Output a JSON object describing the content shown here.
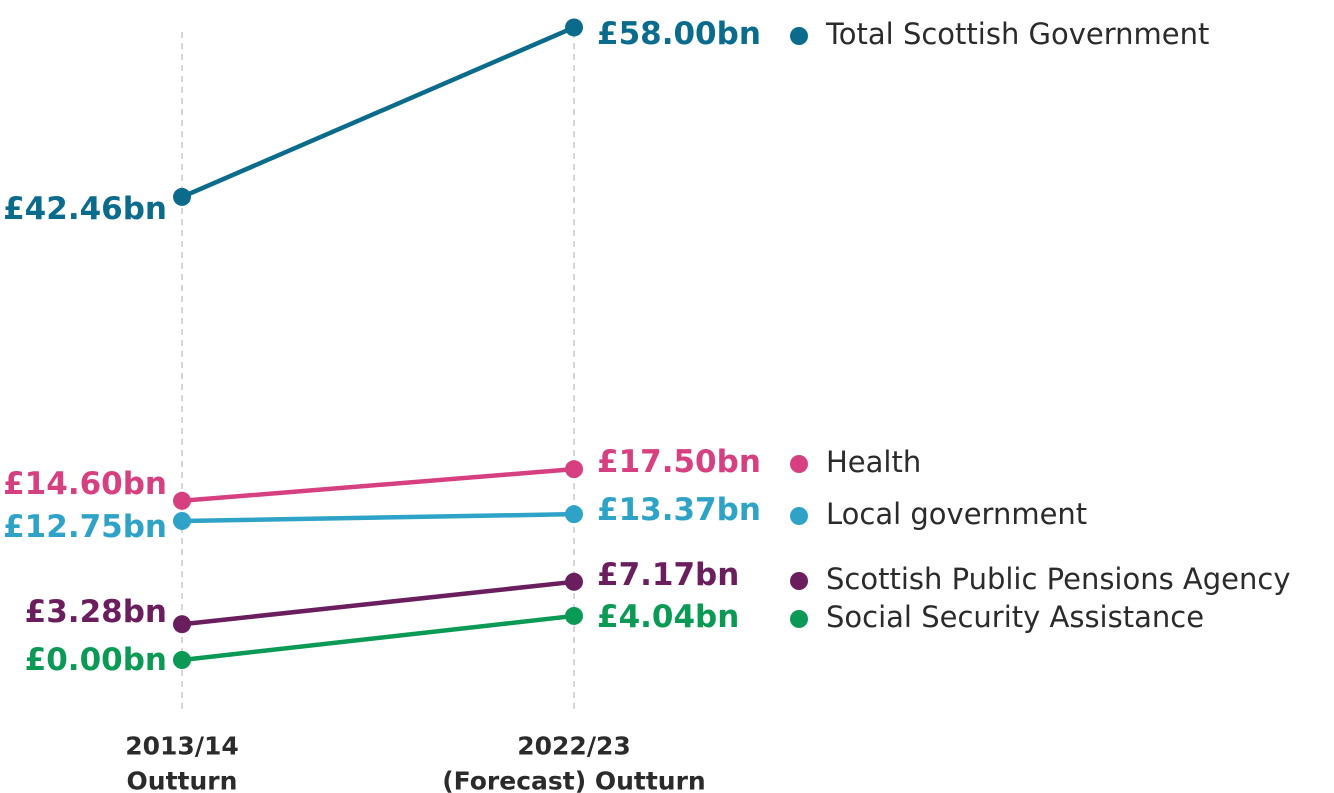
{
  "chart_data": {
    "type": "line",
    "title": "",
    "xlabel": "",
    "ylabel": "",
    "categories": [
      "2013/14 Outturn",
      "2022/23 (Forecast) Outturn"
    ],
    "x_tick_lines": [
      [
        "2013/14",
        "Outturn"
      ],
      [
        "2022/23",
        "(Forecast) Outturn"
      ]
    ],
    "unit": "£bn",
    "ylim": [
      0,
      58
    ],
    "grid": "vertical dashed lines at each category",
    "legend_placement": "right",
    "series": [
      {
        "name": "Total Scottish Government",
        "color": "#0b6b8c",
        "values": [
          42.46,
          58.0
        ],
        "labels": [
          "£42.46bn",
          "£58.00bn"
        ]
      },
      {
        "name": "Health",
        "color": "#d63f80",
        "values": [
          14.6,
          17.5
        ],
        "labels": [
          "£14.60bn",
          "£17.50bn"
        ]
      },
      {
        "name": "Local government",
        "color": "#2ea3c7",
        "values": [
          12.75,
          13.37
        ],
        "labels": [
          "£12.75bn",
          "£13.37bn"
        ]
      },
      {
        "name": "Scottish Public Pensions Agency",
        "color": "#6b1e5e",
        "values": [
          3.28,
          7.17
        ],
        "labels": [
          "£3.28bn",
          "£7.17bn"
        ]
      },
      {
        "name": "Social Security Assistance",
        "color": "#0a9a55",
        "values": [
          0.0,
          4.04
        ],
        "labels": [
          "£0.00bn",
          "£4.04bn"
        ]
      }
    ]
  }
}
